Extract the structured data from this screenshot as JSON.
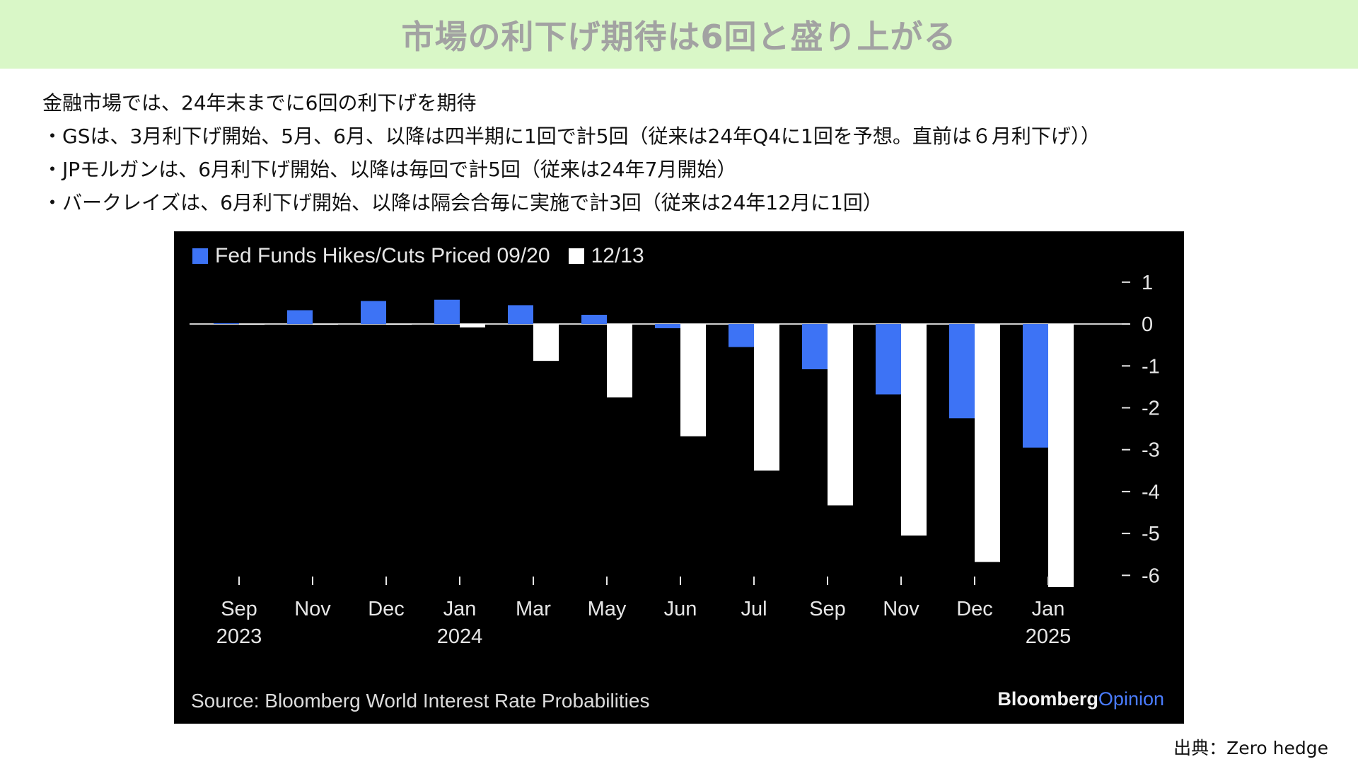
{
  "title": "市場の利下げ期待は6回と盛り上がる",
  "bullets": [
    "金融市場では、24年末までに6回の利下げを期待",
    "・GSは、3月利下げ開始、5月、6月、以降は四半期に1回で計5回（従来は24年Q4に1回を予想。直前は６月利下げ））",
    "・JPモルガンは、6月利下げ開始、以降は毎回で計5回（従来は24年7月開始）",
    "・バークレイズは、6月利下げ開始、以降は隔会合毎に実施で計3回（従来は24年12月に1回）"
  ],
  "chart_data": {
    "type": "bar",
    "categories": [
      "Sep\n2023",
      "Nov",
      "Dec",
      "Jan\n2024",
      "Mar",
      "May",
      "Jun",
      "Jul",
      "Sep",
      "Nov",
      "Dec",
      "Jan\n2025"
    ],
    "series": [
      {
        "name": "Fed Funds Hikes/Cuts Priced 09/20",
        "color": "#3d73f5",
        "values": [
          0.02,
          0.33,
          0.55,
          0.58,
          0.45,
          0.22,
          -0.1,
          -0.55,
          -1.08,
          -1.68,
          -2.25,
          -2.95
        ]
      },
      {
        "name": "12/13",
        "color": "#ffffff",
        "values": [
          0,
          0,
          0,
          -0.08,
          -0.88,
          -1.75,
          -2.68,
          -3.5,
          -4.33,
          -5.05,
          -5.68,
          -6.28
        ]
      }
    ],
    "ylim": [
      -6.4,
      1.2
    ],
    "yticks": [
      1,
      0,
      -1,
      -2,
      -3,
      -4,
      -5,
      -6
    ],
    "ytick_labels": [
      "1",
      "0",
      "-1",
      "-2",
      "-3",
      "-4",
      "-5",
      "-6"
    ],
    "legend_position": "top-left",
    "grid": false,
    "source": "Source: Bloomberg World Interest Rate Probabilities",
    "brand": {
      "main": "Bloomberg",
      "accent": "Opinion"
    }
  },
  "credit": "出典：Zero hedge"
}
